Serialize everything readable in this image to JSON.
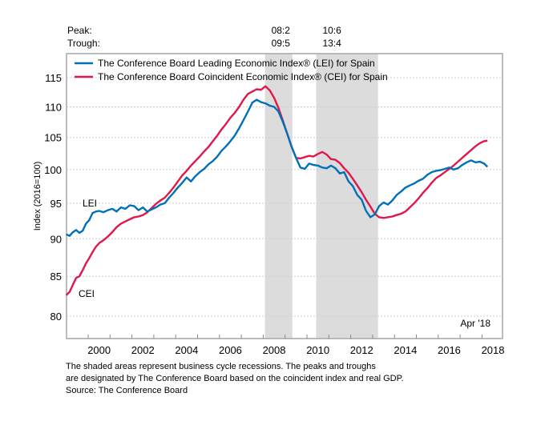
{
  "chart_data": {
    "type": "line",
    "title": "",
    "xlabel": "",
    "ylabel": "Index (2016=100)",
    "y_scale": "log",
    "ylim": [
      78.5,
      117
    ],
    "xlim": [
      1999.0,
      2018.95
    ],
    "yticks": [
      80,
      85,
      90,
      95,
      100,
      105,
      110,
      115
    ],
    "xticks": [
      2000,
      2002,
      2004,
      2006,
      2008,
      2010,
      2012,
      2014,
      2016,
      2018
    ],
    "grid": true,
    "legend": {
      "placement": "top-left",
      "entries": [
        {
          "label": "The Conference Board Leading Economic Index® (LEI) for Spain",
          "color": "#0070b8"
        },
        {
          "label": "The Conference Board Coincident Economic Index® (CEI) for Spain",
          "color": "#e0174c"
        }
      ]
    },
    "recession_header": {
      "peak_label": "Peak:",
      "trough_label": "Trough:"
    },
    "recessions": [
      {
        "peak": "08:2",
        "trough": "09:5",
        "start": 2008.08,
        "end": 2009.33
      },
      {
        "peak": "10:6",
        "trough": "13:4",
        "start": 2010.42,
        "end": 2013.25
      }
    ],
    "annotations": {
      "lei_label": "LEI",
      "cei_label": "CEI",
      "last_date": "Apr '18"
    },
    "series": [
      {
        "name": "LEI",
        "color": "#0070b8",
        "x": [
          1999.0,
          1999.15,
          1999.3,
          1999.45,
          1999.6,
          1999.75,
          1999.9,
          2000.05,
          2000.2,
          2000.35,
          2000.5,
          2000.7,
          2000.9,
          2001.1,
          2001.3,
          2001.5,
          2001.7,
          2001.9,
          2002.1,
          2002.3,
          2002.5,
          2002.7,
          2002.9,
          2003.1,
          2003.3,
          2003.5,
          2003.7,
          2003.9,
          2004.1,
          2004.3,
          2004.5,
          2004.7,
          2004.9,
          2005.1,
          2005.3,
          2005.5,
          2005.7,
          2005.9,
          2006.1,
          2006.3,
          2006.5,
          2006.7,
          2006.9,
          2007.1,
          2007.3,
          2007.5,
          2007.7,
          2007.9,
          2008.1,
          2008.3,
          2008.5,
          2008.7,
          2008.9,
          2009.1,
          2009.3,
          2009.5,
          2009.7,
          2009.9,
          2010.1,
          2010.3,
          2010.5,
          2010.7,
          2010.9,
          2011.1,
          2011.3,
          2011.5,
          2011.7,
          2011.9,
          2012.1,
          2012.3,
          2012.5,
          2012.7,
          2012.9,
          2013.1,
          2013.3,
          2013.5,
          2013.7,
          2013.9,
          2014.1,
          2014.3,
          2014.5,
          2014.7,
          2014.9,
          2015.1,
          2015.3,
          2015.5,
          2015.7,
          2015.9,
          2016.1,
          2016.3,
          2016.5,
          2016.7,
          2016.9,
          2017.1,
          2017.3,
          2017.5,
          2017.7,
          2017.9,
          2018.1,
          2018.25
        ],
        "values": [
          90.6,
          90.4,
          90.9,
          91.2,
          90.8,
          91.1,
          92.1,
          92.6,
          93.6,
          93.8,
          93.9,
          93.7,
          94.0,
          94.2,
          93.8,
          94.4,
          94.2,
          94.7,
          94.6,
          94.0,
          94.4,
          93.8,
          94.1,
          94.4,
          94.8,
          95.0,
          95.8,
          96.5,
          97.3,
          98.0,
          98.8,
          98.2,
          99.0,
          99.6,
          100.1,
          100.8,
          101.3,
          102.0,
          102.9,
          103.6,
          104.4,
          105.3,
          106.5,
          107.8,
          109.2,
          110.7,
          111.2,
          110.8,
          110.6,
          110.2,
          110.0,
          109.2,
          107.5,
          105.6,
          103.5,
          101.8,
          100.3,
          100.1,
          100.9,
          100.7,
          100.6,
          100.3,
          100.2,
          100.6,
          100.2,
          99.4,
          99.6,
          98.2,
          97.5,
          96.2,
          95.5,
          93.9,
          93.0,
          93.4,
          94.6,
          95.1,
          94.8,
          95.4,
          96.2,
          96.7,
          97.3,
          97.6,
          97.9,
          98.3,
          98.6,
          99.2,
          99.6,
          99.8,
          99.9,
          100.1,
          100.3,
          100.0,
          100.2,
          100.7,
          101.1,
          101.4,
          101.1,
          101.2,
          100.9,
          100.4
        ]
      },
      {
        "name": "CEI",
        "color": "#e0174c",
        "x": [
          1999.0,
          1999.15,
          1999.3,
          1999.45,
          1999.6,
          1999.75,
          1999.9,
          2000.05,
          2000.2,
          2000.35,
          2000.5,
          2000.7,
          2000.9,
          2001.1,
          2001.3,
          2001.5,
          2001.7,
          2001.9,
          2002.1,
          2002.3,
          2002.5,
          2002.7,
          2002.9,
          2003.1,
          2003.3,
          2003.5,
          2003.7,
          2003.9,
          2004.1,
          2004.3,
          2004.5,
          2004.7,
          2004.9,
          2005.1,
          2005.3,
          2005.5,
          2005.7,
          2005.9,
          2006.1,
          2006.3,
          2006.5,
          2006.7,
          2006.9,
          2007.1,
          2007.3,
          2007.5,
          2007.7,
          2007.9,
          2008.1,
          2008.3,
          2008.5,
          2008.7,
          2008.9,
          2009.1,
          2009.3,
          2009.5,
          2009.7,
          2009.9,
          2010.1,
          2010.3,
          2010.5,
          2010.7,
          2010.9,
          2011.1,
          2011.3,
          2011.5,
          2011.7,
          2011.9,
          2012.1,
          2012.3,
          2012.5,
          2012.7,
          2012.9,
          2013.1,
          2013.3,
          2013.5,
          2013.7,
          2013.9,
          2014.1,
          2014.3,
          2014.5,
          2014.7,
          2014.9,
          2015.1,
          2015.3,
          2015.5,
          2015.7,
          2015.9,
          2016.1,
          2016.3,
          2016.5,
          2016.7,
          2016.9,
          2017.1,
          2017.3,
          2017.5,
          2017.7,
          2017.9,
          2018.1,
          2018.25
        ],
        "values": [
          82.6,
          83.0,
          83.9,
          84.8,
          85.0,
          85.8,
          86.7,
          87.4,
          88.2,
          88.9,
          89.4,
          89.8,
          90.3,
          90.9,
          91.6,
          92.1,
          92.4,
          92.7,
          93.0,
          93.1,
          93.3,
          93.7,
          94.3,
          94.9,
          95.4,
          95.8,
          96.5,
          97.3,
          98.2,
          99.1,
          99.8,
          100.6,
          101.3,
          102.0,
          102.8,
          103.5,
          104.4,
          105.3,
          106.3,
          107.2,
          108.2,
          109.0,
          110.0,
          111.2,
          112.2,
          112.6,
          113.0,
          112.9,
          113.5,
          112.8,
          111.5,
          109.8,
          107.7,
          105.6,
          103.5,
          101.8,
          101.7,
          101.9,
          102.1,
          102.0,
          102.4,
          102.7,
          102.3,
          101.6,
          101.5,
          101.0,
          100.2,
          99.5,
          98.6,
          97.6,
          96.6,
          95.5,
          94.5,
          93.5,
          93.0,
          92.9,
          93.0,
          93.1,
          93.3,
          93.5,
          93.8,
          94.4,
          95.0,
          95.7,
          96.5,
          97.2,
          98.0,
          98.7,
          99.1,
          99.6,
          100.1,
          100.6,
          101.2,
          101.8,
          102.4,
          103.0,
          103.6,
          104.1,
          104.4,
          104.5
        ]
      }
    ]
  },
  "footnote": {
    "line1": "The shaded areas represent business cycle recessions. The peaks and troughs",
    "line2": "are designated by The Conference Board based on the coincident index and real GDP.",
    "line3": "Source: The Conference Board"
  }
}
